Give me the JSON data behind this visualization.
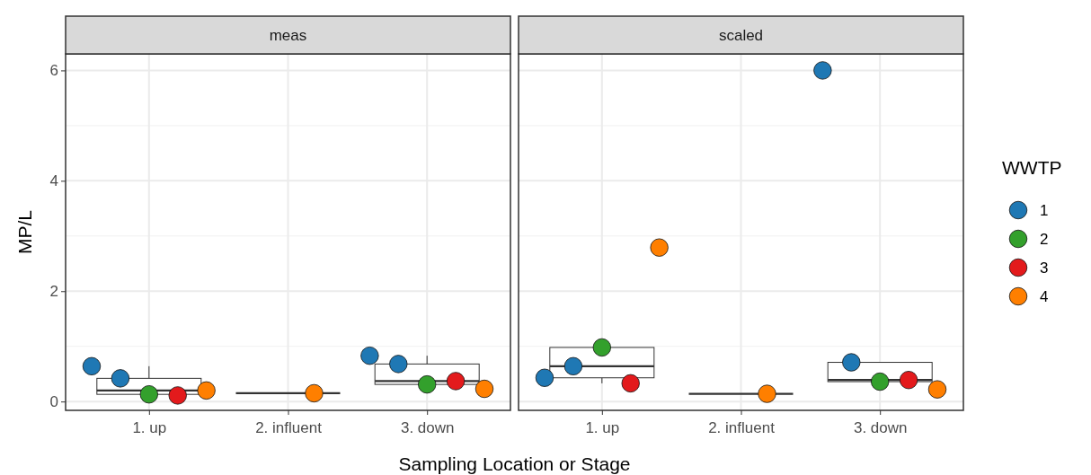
{
  "chart_data": [
    {
      "type": "box",
      "title": "meas",
      "ylabel": "MP/L",
      "xlabel": "Sampling Location or Stage",
      "categories": [
        "1. up",
        "2. influent",
        "3. down"
      ],
      "ylim": [
        -0.16,
        6.3
      ],
      "yticks": [
        0,
        2,
        4,
        6
      ],
      "grid": true,
      "legend": false,
      "color": "#333333",
      "marker": "circle",
      "boxes": [
        {
          "low": 0.11,
          "q1": 0.13,
          "median": 0.2,
          "q3": 0.42,
          "high": 0.64
        },
        {
          "low": 0.15,
          "q1": 0.15,
          "median": 0.15,
          "q3": 0.15,
          "high": 0.15
        },
        {
          "low": 0.23,
          "q1": 0.31,
          "median": 0.37,
          "q3": 0.68,
          "high": 0.83
        }
      ],
      "series": [
        {
          "type": "scatter",
          "color": "#1f78b4",
          "x": [
            "1. up",
            "1. up",
            "3. down",
            "3. down"
          ],
          "values": [
            0.64,
            0.42,
            0.83,
            0.68
          ]
        },
        {
          "type": "scatter",
          "color": "#33a02c",
          "x": [
            "1. up",
            "3. down"
          ],
          "values": [
            0.13,
            0.31
          ]
        },
        {
          "type": "scatter",
          "color": "#e31a1c",
          "x": [
            "1. up",
            "3. down"
          ],
          "values": [
            0.11,
            0.37
          ]
        },
        {
          "type": "scatter",
          "color": "#ff7f00",
          "x": [
            "1. up",
            "2. influent",
            "3. down"
          ],
          "values": [
            0.2,
            0.15,
            0.23
          ]
        }
      ]
    },
    {
      "type": "box",
      "title": "scaled",
      "categories": [
        "1. up",
        "2. influent",
        "3. down"
      ],
      "ylim": [
        -0.16,
        6.3
      ],
      "yticks": [
        0,
        2,
        4,
        6
      ],
      "tick_labels": "x",
      "grid": true,
      "color": "#333333",
      "legend": "right",
      "legend_title": "WWTP",
      "marker": "circle",
      "boxes": [
        {
          "low": 0.33,
          "q1": 0.43,
          "median": 0.64,
          "q3": 0.98,
          "high": 0.98
        },
        {
          "low": 0.14,
          "q1": 0.14,
          "median": 0.14,
          "q3": 0.14,
          "high": 0.14
        },
        {
          "low": 0.22,
          "q1": 0.36,
          "median": 0.39,
          "q3": 0.71,
          "high": 0.71
        }
      ],
      "series": [
        {
          "name": "1",
          "type": "scatter",
          "color": "#1f78b4",
          "x": [
            "1. up",
            "1. up",
            "3. down",
            "3. down"
          ],
          "values": [
            0.43,
            0.64,
            6.0,
            0.71
          ]
        },
        {
          "name": "2",
          "type": "scatter",
          "color": "#33a02c",
          "x": [
            "1. up",
            "3. down"
          ],
          "values": [
            0.98,
            0.36
          ]
        },
        {
          "name": "3",
          "type": "scatter",
          "color": "#e31a1c",
          "x": [
            "1. up",
            "3. down"
          ],
          "values": [
            0.33,
            0.39
          ]
        },
        {
          "name": "4",
          "type": "scatter",
          "color": "#ff7f00",
          "x": [
            "1. up",
            "2. influent",
            "3. down"
          ],
          "values": [
            2.79,
            0.14,
            0.22
          ]
        }
      ]
    }
  ]
}
